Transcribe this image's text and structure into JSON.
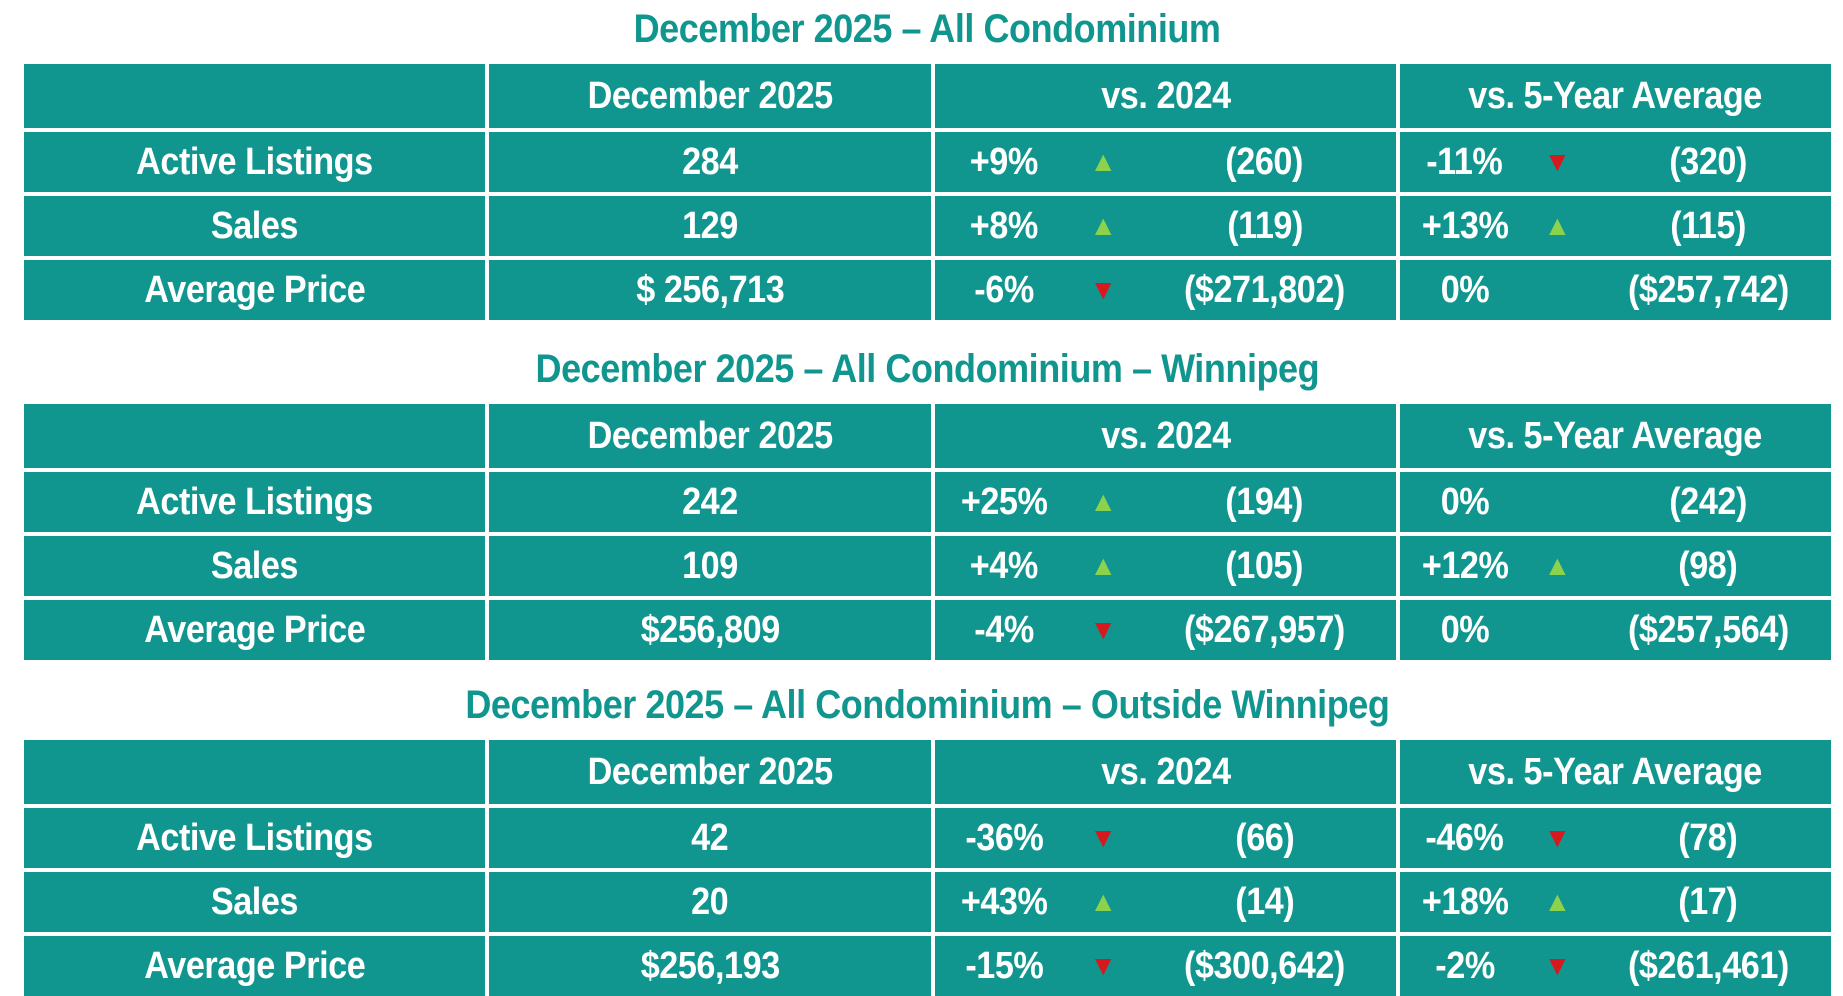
{
  "page": {
    "background": "#FFFFFF",
    "text_color": "#FFFFFF"
  },
  "colors": {
    "teal": "#10968F",
    "up": "#8CD24C",
    "down": "#D7181F"
  },
  "chart_data": [
    {
      "type": "table",
      "title": "December 2025 – All Condominium",
      "columns": [
        "",
        "December 2025",
        "vs. 2024",
        "vs. 5-Year Average"
      ],
      "rows": [
        {
          "label": "Active Listings",
          "current": "284",
          "vs2024": {
            "pct": "+9%",
            "dir": "up",
            "ref": "(260)"
          },
          "vs5yr": {
            "pct": "-11%",
            "dir": "down",
            "ref": "(320)"
          }
        },
        {
          "label": "Sales",
          "current": "129",
          "vs2024": {
            "pct": "+8%",
            "dir": "up",
            "ref": "(119)"
          },
          "vs5yr": {
            "pct": "+13%",
            "dir": "up",
            "ref": "(115)"
          }
        },
        {
          "label": "Average Price",
          "current": "$ 256,713",
          "vs2024": {
            "pct": "-6%",
            "dir": "down",
            "ref": "($271,802)"
          },
          "vs5yr": {
            "pct": "0%",
            "dir": "none",
            "ref": "($257,742)"
          }
        }
      ]
    },
    {
      "type": "table",
      "title": "December 2025 – All Condominium – Winnipeg",
      "columns": [
        "",
        "December 2025",
        "vs. 2024",
        "vs. 5-Year Average"
      ],
      "rows": [
        {
          "label": "Active Listings",
          "current": "242",
          "vs2024": {
            "pct": "+25%",
            "dir": "up",
            "ref": "(194)"
          },
          "vs5yr": {
            "pct": "0%",
            "dir": "none",
            "ref": "(242)"
          }
        },
        {
          "label": "Sales",
          "current": "109",
          "vs2024": {
            "pct": "+4%",
            "dir": "up",
            "ref": "(105)"
          },
          "vs5yr": {
            "pct": "+12%",
            "dir": "up",
            "ref": "(98)"
          }
        },
        {
          "label": "Average Price",
          "current": "$256,809",
          "vs2024": {
            "pct": "-4%",
            "dir": "down",
            "ref": "($267,957)"
          },
          "vs5yr": {
            "pct": "0%",
            "dir": "none",
            "ref": "($257,564)"
          }
        }
      ]
    },
    {
      "type": "table",
      "title": "December 2025 – All Condominium – Outside Winnipeg",
      "columns": [
        "",
        "December 2025",
        "vs. 2024",
        "vs. 5-Year Average"
      ],
      "rows": [
        {
          "label": "Active Listings",
          "current": "42",
          "vs2024": {
            "pct": "-36%",
            "dir": "down",
            "ref": "(66)"
          },
          "vs5yr": {
            "pct": "-46%",
            "dir": "down",
            "ref": "(78)"
          }
        },
        {
          "label": "Sales",
          "current": "20",
          "vs2024": {
            "pct": "+43%",
            "dir": "up",
            "ref": "(14)"
          },
          "vs5yr": {
            "pct": "+18%",
            "dir": "up",
            "ref": "(17)"
          }
        },
        {
          "label": "Average Price",
          "current": "$256,193",
          "vs2024": {
            "pct": "-15%",
            "dir": "down",
            "ref": "($300,642)"
          },
          "vs5yr": {
            "pct": "-2%",
            "dir": "down",
            "ref": "($261,461)"
          }
        }
      ]
    }
  ]
}
